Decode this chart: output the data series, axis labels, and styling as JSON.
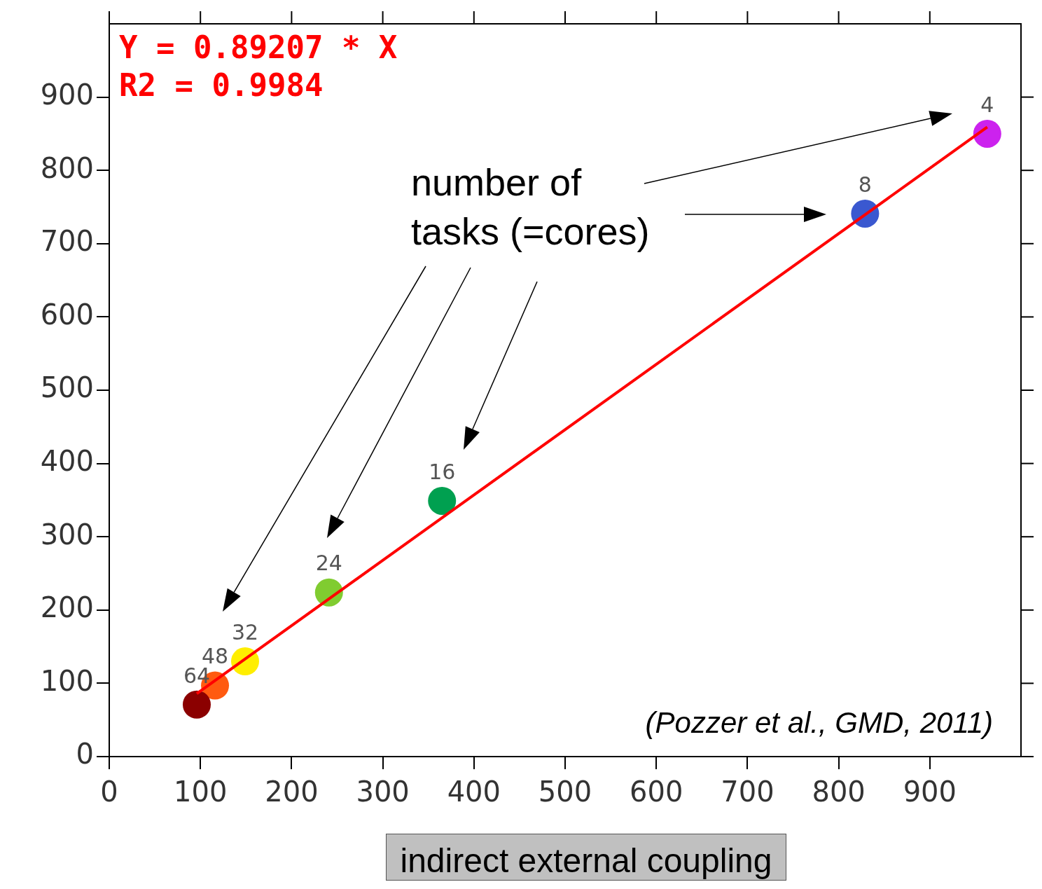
{
  "chart_data": {
    "type": "scatter",
    "xlabel": "indirect external coupling",
    "xlim": [
      0,
      1000
    ],
    "ylim": [
      0,
      1000
    ],
    "xticks": [
      0,
      100,
      200,
      300,
      400,
      500,
      600,
      700,
      800,
      900
    ],
    "yticks": [
      0,
      100,
      200,
      300,
      400,
      500,
      600,
      700,
      800,
      900
    ],
    "grid": false,
    "legend": false,
    "marker": "circle",
    "series": [
      {
        "x": [
          963,
          829,
          365,
          241,
          149,
          116,
          96
        ],
        "values": [
          850,
          741,
          349,
          224,
          130,
          97,
          71
        ],
        "colors": [
          "#cc22ee",
          "#3a58d0",
          "#00a050",
          "#80cc30",
          "#ffee00",
          "#ff5a10",
          "#8b0000"
        ]
      },
      {
        "type": "line",
        "color": "#ff0000",
        "marker": "none",
        "line_style": "solid",
        "x": [
          96,
          963
        ],
        "values": [
          86,
          859
        ]
      }
    ],
    "annotations": [
      "Y = 0.89207 * X",
      "R2 = 0.9984",
      "number of tasks (=cores)",
      "(Pozzer et al., GMD, 2011)",
      {
        "text": "4",
        "x": 963,
        "y": 850
      },
      {
        "text": "8",
        "x": 829,
        "y": 741
      },
      {
        "text": "16",
        "x": 365,
        "y": 349
      },
      {
        "text": "24",
        "x": 241,
        "y": 224
      },
      {
        "text": "32",
        "x": 149,
        "y": 130
      },
      {
        "text": "48",
        "x": 116,
        "y": 97
      },
      {
        "text": "64",
        "x": 96,
        "y": 71
      }
    ]
  }
}
